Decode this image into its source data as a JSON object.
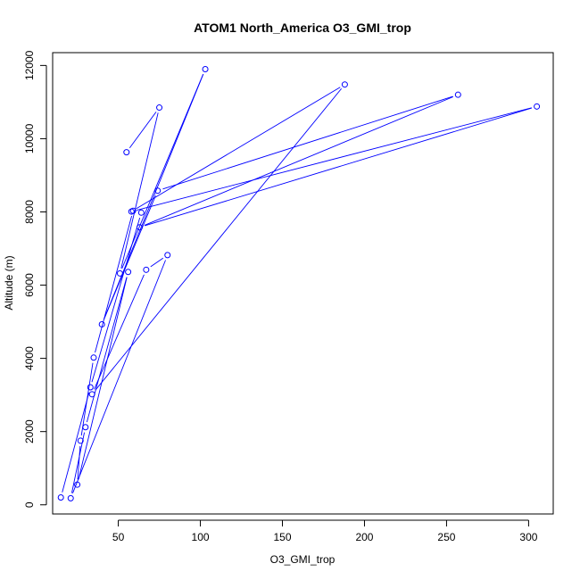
{
  "chart_data": {
    "type": "line",
    "title": "ATOM1 North_America O3_GMI_trop",
    "xlabel": "O3_GMI_trop",
    "ylabel": "Altitude (m)",
    "xlim": [
      10,
      315
    ],
    "ylim": [
      -250,
      12350
    ],
    "x_ticks": [
      50,
      100,
      150,
      200,
      250,
      300
    ],
    "y_ticks": [
      0,
      2000,
      4000,
      6000,
      8000,
      10000,
      12000
    ],
    "x_tick_labels": [
      "50",
      "100",
      "150",
      "200",
      "250",
      "300"
    ],
    "y_tick_labels": [
      "0",
      "2000",
      "4000",
      "6000",
      "8000",
      "10000",
      "12000"
    ],
    "grid": false,
    "legend": "none",
    "series": [
      {
        "color": "#0000ff",
        "markers": "open-circle",
        "points": [
          {
            "x": 55,
            "y": 9630
          },
          {
            "x": 75,
            "y": 10850
          },
          {
            "x": 51,
            "y": 6320
          },
          {
            "x": 103,
            "y": 11900
          },
          {
            "x": 40,
            "y": 4930
          },
          {
            "x": 74,
            "y": 8580
          },
          {
            "x": 257,
            "y": 11200
          },
          {
            "x": 63,
            "y": 7580
          },
          {
            "x": 305,
            "y": 10880
          },
          {
            "x": 58,
            "y": 8010
          },
          {
            "x": 188,
            "y": 11480
          },
          {
            "x": 34,
            "y": 3020
          },
          {
            "x": 67,
            "y": 6420
          },
          {
            "x": 80,
            "y": 6820
          },
          {
            "x": 21,
            "y": 180
          },
          {
            "x": 30,
            "y": 2120
          },
          {
            "x": 56,
            "y": 6360
          },
          {
            "x": 25,
            "y": 550
          },
          {
            "x": 27,
            "y": 1750
          },
          {
            "x": 35,
            "y": 4020
          },
          {
            "x": 59,
            "y": 8030
          },
          {
            "x": 64,
            "y": 7980
          },
          {
            "x": 33,
            "y": 3210
          },
          {
            "x": 15,
            "y": 200
          }
        ]
      }
    ]
  }
}
